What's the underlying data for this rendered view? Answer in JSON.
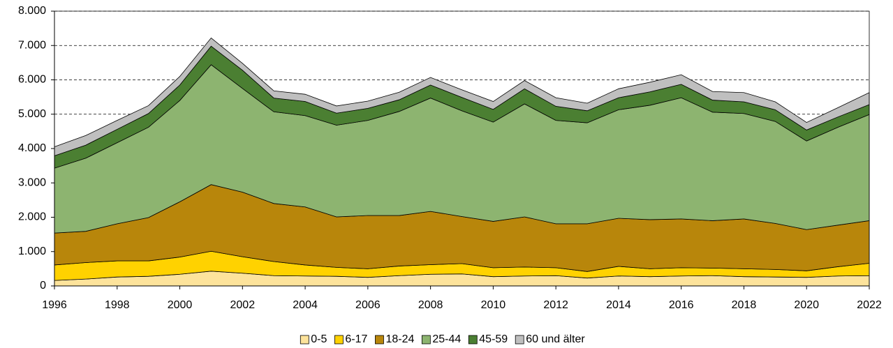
{
  "chart_data": {
    "type": "stacked_area",
    "x": [
      1996,
      1997,
      1998,
      1999,
      2000,
      2001,
      2002,
      2003,
      2004,
      2005,
      2006,
      2007,
      2008,
      2009,
      2010,
      2011,
      2012,
      2013,
      2014,
      2015,
      2016,
      2017,
      2018,
      2019,
      2020,
      2021,
      2022
    ],
    "series": [
      {
        "name": "0-5",
        "color": "#fde39b",
        "values": [
          160,
          200,
          260,
          280,
          340,
          430,
          370,
          300,
          290,
          280,
          250,
          300,
          340,
          350,
          270,
          290,
          300,
          230,
          290,
          270,
          290,
          300,
          270,
          260,
          250,
          290,
          300
        ]
      },
      {
        "name": "6-17",
        "color": "#ffd200",
        "values": [
          450,
          480,
          470,
          450,
          500,
          580,
          480,
          410,
          320,
          260,
          250,
          280,
          280,
          300,
          260,
          260,
          230,
          190,
          280,
          230,
          240,
          220,
          230,
          220,
          190,
          270,
          360
        ]
      },
      {
        "name": "18-24",
        "color": "#b8860b",
        "values": [
          930,
          910,
          1080,
          1260,
          1610,
          1940,
          1880,
          1690,
          1690,
          1470,
          1550,
          1470,
          1550,
          1370,
          1350,
          1460,
          1280,
          1390,
          1400,
          1430,
          1420,
          1380,
          1450,
          1340,
          1200,
          1210,
          1240
        ]
      },
      {
        "name": "25-44",
        "color": "#8db470",
        "values": [
          1890,
          2130,
          2360,
          2630,
          2950,
          3490,
          3020,
          2670,
          2660,
          2670,
          2770,
          3030,
          3300,
          3080,
          2890,
          3290,
          3010,
          2940,
          3160,
          3330,
          3530,
          3160,
          3070,
          2970,
          2580,
          2850,
          3090
        ]
      },
      {
        "name": "45-59",
        "color": "#4b7f32",
        "values": [
          360,
          380,
          390,
          400,
          450,
          540,
          530,
          400,
          410,
          350,
          350,
          340,
          380,
          390,
          370,
          440,
          410,
          350,
          350,
          390,
          390,
          350,
          340,
          340,
          320,
          300,
          290
        ]
      },
      {
        "name": "60 und älter",
        "color": "#bfbfbf",
        "values": [
          260,
          280,
          260,
          230,
          250,
          240,
          200,
          210,
          210,
          210,
          210,
          220,
          220,
          220,
          230,
          240,
          250,
          220,
          260,
          280,
          280,
          250,
          270,
          230,
          220,
          270,
          350
        ]
      }
    ],
    "xlim": [
      1996,
      2022
    ],
    "xticks": [
      1996,
      1998,
      2000,
      2002,
      2004,
      2006,
      2008,
      2010,
      2012,
      2014,
      2016,
      2018,
      2020,
      2022
    ],
    "ylim": [
      0,
      8000
    ],
    "yticks": [
      0,
      {
        "value": 1000,
        "label": "1.000"
      },
      {
        "value": 2000,
        "label": "2.000"
      },
      {
        "value": 3000,
        "label": "3.000"
      },
      {
        "value": 4000,
        "label": "4.000"
      },
      {
        "value": 5000,
        "label": "5.000"
      },
      {
        "value": 6000,
        "label": "6.000"
      },
      {
        "value": 7000,
        "label": "7.000"
      },
      {
        "value": 8000,
        "label": "8.000"
      }
    ],
    "grid": true,
    "legend": "bottom"
  }
}
